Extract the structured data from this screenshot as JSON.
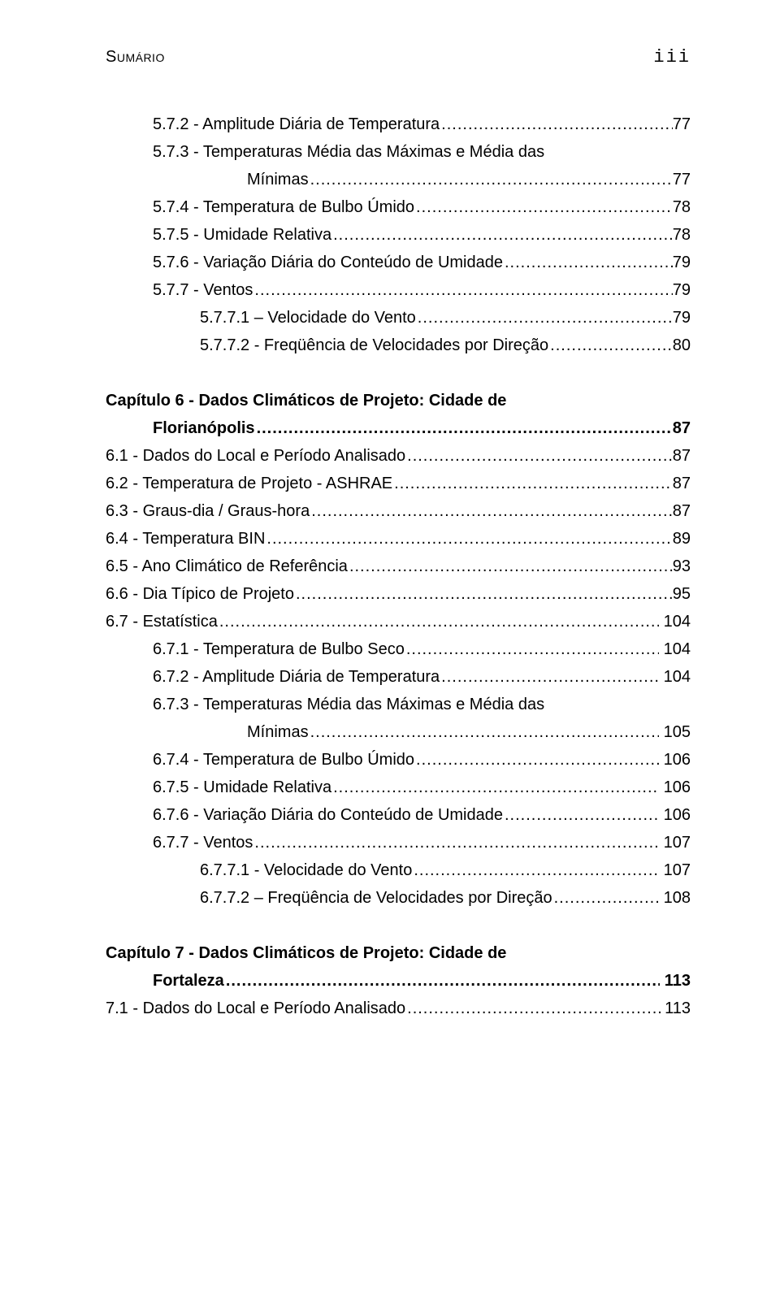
{
  "header": {
    "left": "Sumário",
    "right": "iii"
  },
  "entries": [
    {
      "kind": "line",
      "indent": "ind1",
      "label": "5.7.2 - Amplitude Diária de Temperatura",
      "page": "77"
    },
    {
      "kind": "wrapstart",
      "indent": "ind1",
      "label": "5.7.3 - Temperaturas Média das Máximas e Média das"
    },
    {
      "kind": "line",
      "indent": "ind-wrap",
      "label": "Mínimas",
      "page": "77"
    },
    {
      "kind": "line",
      "indent": "ind1",
      "label": "5.7.4 - Temperatura de Bulbo Úmido",
      "page": "78"
    },
    {
      "kind": "line",
      "indent": "ind1",
      "label": "5.7.5 - Umidade Relativa",
      "page": "78"
    },
    {
      "kind": "line",
      "indent": "ind1",
      "label": "5.7.6 - Variação Diária do Conteúdo de Umidade",
      "page": "79"
    },
    {
      "kind": "line",
      "indent": "ind1",
      "label": "5.7.7 - Ventos",
      "page": "79"
    },
    {
      "kind": "line",
      "indent": "ind2",
      "label": "5.7.7.1 – Velocidade do Vento",
      "page": "79"
    },
    {
      "kind": "line",
      "indent": "ind2",
      "label": "5.7.7.2 - Freqüência de Velocidades por Direção",
      "page": "80"
    },
    {
      "kind": "gap"
    },
    {
      "kind": "wrapstart",
      "indent": "",
      "bold": true,
      "label": "Capítulo 6 - Dados Climáticos de Projeto: Cidade de"
    },
    {
      "kind": "line",
      "indent": "ind1",
      "bold": true,
      "label": "Florianópolis",
      "page": "87"
    },
    {
      "kind": "line",
      "indent": "",
      "label": "6.1 - Dados do Local e Período Analisado",
      "page": "87"
    },
    {
      "kind": "line",
      "indent": "",
      "label": "6.2 - Temperatura de Projeto - ASHRAE",
      "page": "87"
    },
    {
      "kind": "line",
      "indent": "",
      "label": "6.3 - Graus-dia / Graus-hora",
      "page": "87"
    },
    {
      "kind": "line",
      "indent": "",
      "label": "6.4 - Temperatura BIN",
      "page": "89"
    },
    {
      "kind": "line",
      "indent": "",
      "label": "6.5 - Ano Climático de Referência",
      "page": "93"
    },
    {
      "kind": "line",
      "indent": "",
      "label": "6.6 - Dia Típico de Projeto",
      "page": "95"
    },
    {
      "kind": "line",
      "indent": "",
      "label": "6.7 - Estatística",
      "page": " 104"
    },
    {
      "kind": "line",
      "indent": "ind1",
      "label": "6.7.1 - Temperatura de Bulbo Seco",
      "page": " 104"
    },
    {
      "kind": "line",
      "indent": "ind1",
      "label": "6.7.2 - Amplitude Diária de Temperatura",
      "page": " 104"
    },
    {
      "kind": "wrapstart",
      "indent": "ind1",
      "label": "6.7.3 - Temperaturas Média das Máximas e Média das"
    },
    {
      "kind": "line",
      "indent": "ind-wrap",
      "label": "Mínimas",
      "page": " 105"
    },
    {
      "kind": "line",
      "indent": "ind1",
      "label": "6.7.4 - Temperatura de Bulbo Úmido",
      "page": " 106"
    },
    {
      "kind": "line",
      "indent": "ind1",
      "label": "6.7.5 - Umidade Relativa",
      "page": " 106"
    },
    {
      "kind": "line",
      "indent": "ind1",
      "label": "6.7.6 - Variação Diária do Conteúdo de Umidade",
      "page": " 106"
    },
    {
      "kind": "line",
      "indent": "ind1",
      "label": "6.7.7 - Ventos",
      "page": " 107"
    },
    {
      "kind": "line",
      "indent": "ind2",
      "label": "6.7.7.1 - Velocidade do Vento",
      "page": " 107"
    },
    {
      "kind": "line",
      "indent": "ind2",
      "label": "6.7.7.2 – Freqüência de Velocidades por Direção",
      "page": " 108"
    },
    {
      "kind": "gap"
    },
    {
      "kind": "wrapstart",
      "indent": "",
      "bold": true,
      "label": "Capítulo 7 - Dados Climáticos de Projeto: Cidade de"
    },
    {
      "kind": "line",
      "indent": "ind1",
      "bold": true,
      "label": "Fortaleza",
      "page": " 113"
    },
    {
      "kind": "line",
      "indent": "",
      "label": "7.1 - Dados do Local e Período Analisado",
      "page": " 113"
    }
  ]
}
